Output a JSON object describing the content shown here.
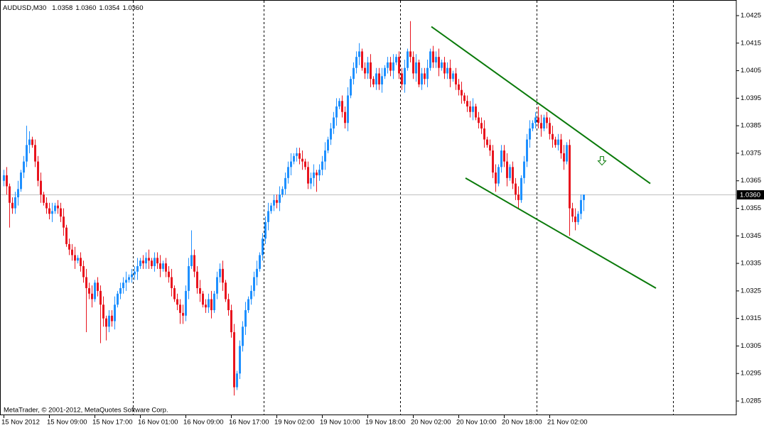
{
  "chart_data": {
    "type": "candlestick",
    "title": "AUDUSD,M30",
    "ohlc_labels": [
      "1.0358",
      "1.0360",
      "1.0354",
      "1.0360"
    ],
    "watermark": "MetaTrader, © 2001-2012, MetaQuotes Software Corp.",
    "up_color": "#1e90ff",
    "down_color": "#e8141e",
    "ylim": [
      1.028,
      1.043
    ],
    "yticks": [
      1.0425,
      1.0415,
      1.0405,
      1.0395,
      1.0385,
      1.0375,
      1.0365,
      1.0355,
      1.0345,
      1.0335,
      1.0325,
      1.0315,
      1.0305,
      1.0295,
      1.0285
    ],
    "current_price": {
      "value": 1.036,
      "label": "1.0360"
    },
    "categories": [
      "15 Nov 2012",
      null,
      null,
      null,
      null,
      null,
      null,
      null,
      null,
      null,
      null,
      null,
      null,
      null,
      null,
      null,
      "15 Nov 09:00",
      null,
      null,
      null,
      null,
      null,
      null,
      null,
      null,
      null,
      null,
      null,
      null,
      null,
      null,
      null,
      "15 Nov 17:00",
      null,
      null,
      null,
      null,
      null,
      null,
      null,
      null,
      null,
      null,
      null,
      null,
      null,
      null,
      null,
      "16 Nov 01:00",
      null,
      null,
      null,
      null,
      null,
      null,
      null,
      null,
      null,
      null,
      null,
      null,
      null,
      null,
      null,
      "16 Nov 09:00",
      null,
      null,
      null,
      null,
      null,
      null,
      null,
      null,
      null,
      null,
      null,
      null,
      null,
      null,
      null,
      "16 Nov 17:00",
      null,
      null,
      null,
      null,
      null,
      null,
      null,
      null,
      null,
      null,
      null,
      null,
      null,
      null,
      null,
      "19 Nov 02:00",
      null,
      null,
      null,
      null,
      null,
      null,
      null,
      null,
      null,
      null,
      null,
      null,
      null,
      null,
      null,
      "19 Nov 10:00",
      null,
      null,
      null,
      null,
      null,
      null,
      null,
      null,
      null,
      null,
      null,
      null,
      null,
      null,
      null,
      "19 Nov 18:00",
      null,
      null,
      null,
      null,
      null,
      null,
      null,
      null,
      null,
      null,
      null,
      null,
      null,
      null,
      null,
      "20 Nov 02:00",
      null,
      null,
      null,
      null,
      null,
      null,
      null,
      null,
      null,
      null,
      null,
      null,
      null,
      null,
      null,
      "20 Nov 10:00",
      null,
      null,
      null,
      null,
      null,
      null,
      null,
      null,
      null,
      null,
      null,
      null,
      null,
      null,
      null,
      "20 Nov 18:00",
      null,
      null,
      null,
      null,
      null,
      null,
      null,
      null,
      null,
      null,
      null,
      null,
      null,
      null,
      null,
      "21 Nov 02:00",
      null,
      null,
      null,
      null,
      null,
      null,
      null,
      null,
      null,
      null,
      null,
      null
    ],
    "open": [
      1.0365,
      1.0367,
      1.0363,
      1.0357,
      1.0355,
      1.0359,
      1.0362,
      1.0368,
      1.0372,
      1.0378,
      1.038,
      1.0378,
      1.0372,
      1.0365,
      1.036,
      1.0357,
      1.0355,
      1.0353,
      1.0354,
      1.0356,
      1.0355,
      1.0352,
      1.0348,
      1.0342,
      1.034,
      1.0338,
      1.0336,
      1.0337,
      1.0334,
      1.033,
      1.0326,
      1.0324,
      1.0322,
      1.0328,
      1.0325,
      1.032,
      1.0315,
      1.0312,
      1.0316,
      1.0314,
      1.032,
      1.0324,
      1.0326,
      1.0328,
      1.0329,
      1.033,
      1.0331,
      1.0332,
      1.0334,
      1.0336,
      1.0335,
      1.0337,
      1.0336,
      1.0334,
      1.0337,
      1.0335,
      1.0333,
      1.0335,
      1.0332,
      1.033,
      1.0326,
      1.0322,
      1.032,
      1.0317,
      1.0316,
      1.0325,
      1.0334,
      1.0338,
      1.0332,
      1.0326,
      1.0324,
      1.032,
      1.0319,
      1.0322,
      1.0318,
      1.0324,
      1.033,
      1.0333,
      1.0328,
      1.0322,
      1.0318,
      1.031,
      1.029,
      1.0295,
      1.0305,
      1.0312,
      1.0318,
      1.0322,
      1.0325,
      1.033,
      1.0333,
      1.0338,
      1.0344,
      1.035,
      1.0354,
      1.0356,
      1.0358,
      1.0357,
      1.036,
      1.0362,
      1.0366,
      1.037,
      1.0372,
      1.0374,
      1.0375,
      1.0373,
      1.0372,
      1.037,
      1.0364,
      1.0366,
      1.0368,
      1.0367,
      1.0369,
      1.0372,
      1.0376,
      1.038,
      1.0384,
      1.0388,
      1.0392,
      1.0394,
      1.039,
      1.0386,
      1.0396,
      1.0402,
      1.0406,
      1.041,
      1.0412,
      1.0406,
      1.0404,
      1.0408,
      1.0402,
      1.04,
      1.0404,
      1.04,
      1.0403,
      1.0406,
      1.0408,
      1.0405,
      1.0408,
      1.041,
      1.0404,
      1.04,
      1.0406,
      1.0412,
      1.041,
      1.0404,
      1.0408,
      1.04,
      1.0404,
      1.0402,
      1.0406,
      1.0412,
      1.0408,
      1.041,
      1.0406,
      1.0408,
      1.0404,
      1.0406,
      1.0402,
      1.0404,
      1.04,
      1.0398,
      1.0396,
      1.0394,
      1.0392,
      1.039,
      1.0392,
      1.0388,
      1.0386,
      1.0384,
      1.038,
      1.0378,
      1.0376,
      1.0368,
      1.0364,
      1.037,
      1.0376,
      1.0372,
      1.0366,
      1.037,
      1.0364,
      1.036,
      1.0358,
      1.0366,
      1.0372,
      1.038,
      1.0384,
      1.0386,
      1.0388,
      1.0386,
      1.0384,
      1.0388,
      1.0386,
      1.0382,
      1.038,
      1.0378,
      1.038,
      1.0375,
      1.0372,
      1.0378,
      1.0355,
      1.0352,
      1.035,
      1.0353,
      1.0358
    ],
    "high": [
      1.0369,
      1.037,
      1.0364,
      1.0359,
      1.0361,
      1.0365,
      1.0369,
      1.0374,
      1.0385,
      1.0383,
      1.0381,
      1.038,
      1.0374,
      1.0368,
      1.0361,
      1.0359,
      1.0357,
      1.0357,
      1.0357,
      1.0358,
      1.0357,
      1.0355,
      1.0349,
      1.0344,
      1.0342,
      1.0341,
      1.0338,
      1.0339,
      1.0336,
      1.0333,
      1.0328,
      1.0327,
      1.0329,
      1.033,
      1.0327,
      1.0323,
      1.0316,
      1.0318,
      1.0318,
      1.0323,
      1.0325,
      1.0328,
      1.033,
      1.0332,
      1.0331,
      1.0333,
      1.0334,
      1.0337,
      1.0337,
      1.0338,
      1.0339,
      1.034,
      1.0337,
      1.0339,
      1.0339,
      1.0338,
      1.0336,
      1.0337,
      1.0334,
      1.0333,
      1.0327,
      1.0324,
      1.0322,
      1.032,
      1.0327,
      1.0337,
      1.0347,
      1.034,
      1.0334,
      1.0329,
      1.0325,
      1.0322,
      1.0324,
      1.0325,
      1.0325,
      1.0332,
      1.0335,
      1.0336,
      1.0329,
      1.0324,
      1.032,
      1.0313,
      1.0296,
      1.0307,
      1.0314,
      1.0321,
      1.0323,
      1.0327,
      1.0332,
      1.0336,
      1.0339,
      1.0346,
      1.0352,
      1.0357,
      1.0357,
      1.036,
      1.036,
      1.0363,
      1.0363,
      1.0368,
      1.0372,
      1.0375,
      1.0375,
      1.0377,
      1.0377,
      1.0376,
      1.0373,
      1.0372,
      1.0368,
      1.0371,
      1.0369,
      1.0371,
      1.0374,
      1.0379,
      1.0381,
      1.0386,
      1.039,
      1.0395,
      1.0395,
      1.0396,
      1.0392,
      1.0399,
      1.0403,
      1.0408,
      1.0412,
      1.0415,
      1.0413,
      1.0408,
      1.041,
      1.0411,
      1.0403,
      1.0406,
      1.0406,
      1.0406,
      1.0407,
      1.041,
      1.041,
      1.0411,
      1.0411,
      1.0412,
      1.0406,
      1.0409,
      1.0413,
      1.0423,
      1.0412,
      1.0411,
      1.0409,
      1.0406,
      1.0406,
      1.0409,
      1.0413,
      1.0414,
      1.0412,
      1.0413,
      1.0409,
      1.041,
      1.0408,
      1.0409,
      1.0405,
      1.0406,
      1.0402,
      1.0401,
      1.0397,
      1.0396,
      1.0394,
      1.0395,
      1.0393,
      1.039,
      1.0388,
      1.0387,
      1.0381,
      1.038,
      1.0378,
      1.0371,
      1.0371,
      1.0378,
      1.0378,
      1.0375,
      1.0371,
      1.0372,
      1.0366,
      1.0363,
      1.0367,
      1.0374,
      1.0382,
      1.0387,
      1.0387,
      1.039,
      1.0392,
      1.0389,
      1.0389,
      1.039,
      1.0388,
      1.0385,
      1.0381,
      1.0382,
      1.0382,
      1.0378,
      1.0379,
      1.038,
      1.0357,
      1.0355,
      1.0354,
      1.036,
      1.036
    ],
    "low": [
      1.0363,
      1.036,
      1.0348,
      1.0353,
      1.0353,
      1.0356,
      1.0361,
      1.0366,
      1.037,
      1.0375,
      1.0377,
      1.037,
      1.0363,
      1.0357,
      1.0356,
      1.0353,
      1.0351,
      1.035,
      1.0353,
      1.0353,
      1.035,
      1.0345,
      1.0341,
      1.0338,
      1.0336,
      1.0333,
      1.0335,
      1.0332,
      1.0328,
      1.031,
      1.0322,
      1.0319,
      1.0321,
      1.0323,
      1.0306,
      1.0312,
      1.0307,
      1.031,
      1.0312,
      1.0311,
      1.0319,
      1.0322,
      1.0324,
      1.0325,
      1.0328,
      1.0328,
      1.0329,
      1.0329,
      1.0333,
      1.0333,
      1.0333,
      1.0333,
      1.0333,
      1.0332,
      1.0333,
      1.033,
      1.0332,
      1.033,
      1.0328,
      1.0323,
      1.0321,
      1.0318,
      1.0313,
      1.0313,
      1.0314,
      1.0322,
      1.0333,
      1.033,
      1.0324,
      1.0321,
      1.0319,
      1.0317,
      1.0317,
      1.0315,
      1.0317,
      1.0322,
      1.0328,
      1.0325,
      1.0321,
      1.0316,
      1.0308,
      1.0287,
      1.0289,
      1.0293,
      1.0303,
      1.0309,
      1.0317,
      1.032,
      1.0323,
      1.0327,
      1.0332,
      1.0336,
      1.0342,
      1.0347,
      1.0353,
      1.0354,
      1.0355,
      1.0354,
      1.0359,
      1.036,
      1.0364,
      1.0367,
      1.0371,
      1.0372,
      1.0371,
      1.0369,
      1.0369,
      1.0362,
      1.0362,
      1.0363,
      1.0361,
      1.0365,
      1.0367,
      1.0369,
      1.0375,
      1.0378,
      1.0382,
      1.0385,
      1.0391,
      1.0388,
      1.0384,
      1.0383,
      1.0395,
      1.04,
      1.0404,
      1.0407,
      1.0405,
      1.0402,
      1.0402,
      1.0399,
      1.0399,
      1.0398,
      1.0398,
      1.0397,
      1.0402,
      1.0404,
      1.0403,
      1.0402,
      1.0407,
      1.0402,
      1.0398,
      1.0397,
      1.0405,
      1.0408,
      1.0402,
      1.0401,
      1.0399,
      1.0398,
      1.04,
      1.0399,
      1.0405,
      1.0406,
      1.0406,
      1.0403,
      1.0405,
      1.0402,
      1.0402,
      1.0399,
      1.0401,
      1.0398,
      1.0396,
      1.0393,
      1.0393,
      1.039,
      1.0388,
      1.0387,
      1.0387,
      1.0384,
      1.0382,
      1.0377,
      1.0377,
      1.0374,
      1.0366,
      1.0361,
      1.0363,
      1.0368,
      1.037,
      1.0363,
      1.0365,
      1.0362,
      1.0358,
      1.0355,
      1.0357,
      1.0364,
      1.037,
      1.0377,
      1.0383,
      1.0384,
      1.0384,
      1.0381,
      1.0383,
      1.0384,
      1.038,
      1.0377,
      1.0377,
      1.0376,
      1.0373,
      1.0369,
      1.0371,
      1.0345,
      1.035,
      1.0347,
      1.0349,
      1.0351,
      1.0354
    ],
    "close": [
      1.0367,
      1.0363,
      1.0357,
      1.0355,
      1.0359,
      1.0362,
      1.0368,
      1.0372,
      1.0378,
      1.038,
      1.0378,
      1.0372,
      1.0365,
      1.036,
      1.0357,
      1.0355,
      1.0353,
      1.0354,
      1.0356,
      1.0355,
      1.0352,
      1.0348,
      1.0342,
      1.034,
      1.0338,
      1.0336,
      1.0337,
      1.0334,
      1.033,
      1.0326,
      1.0324,
      1.0322,
      1.0328,
      1.0325,
      1.032,
      1.0315,
      1.0312,
      1.0316,
      1.0314,
      1.032,
      1.0324,
      1.0326,
      1.0328,
      1.0329,
      1.033,
      1.0331,
      1.0332,
      1.0334,
      1.0336,
      1.0335,
      1.0337,
      1.0336,
      1.0334,
      1.0337,
      1.0335,
      1.0333,
      1.0335,
      1.0332,
      1.033,
      1.0326,
      1.0322,
      1.032,
      1.0317,
      1.0316,
      1.0325,
      1.0334,
      1.0338,
      1.0332,
      1.0326,
      1.0324,
      1.032,
      1.0319,
      1.0322,
      1.0318,
      1.0324,
      1.033,
      1.0333,
      1.0328,
      1.0322,
      1.0318,
      1.031,
      1.029,
      1.0295,
      1.0305,
      1.0312,
      1.0318,
      1.0322,
      1.0325,
      1.033,
      1.0333,
      1.0338,
      1.0344,
      1.035,
      1.0354,
      1.0356,
      1.0358,
      1.0357,
      1.036,
      1.0362,
      1.0366,
      1.037,
      1.0372,
      1.0374,
      1.0375,
      1.0373,
      1.0372,
      1.037,
      1.0364,
      1.0366,
      1.0368,
      1.0367,
      1.0369,
      1.0372,
      1.0376,
      1.038,
      1.0384,
      1.0388,
      1.0392,
      1.0394,
      1.039,
      1.0386,
      1.0396,
      1.0402,
      1.0406,
      1.041,
      1.0412,
      1.0406,
      1.0404,
      1.0408,
      1.0402,
      1.04,
      1.0404,
      1.04,
      1.0403,
      1.0406,
      1.0408,
      1.0405,
      1.0408,
      1.041,
      1.0404,
      1.04,
      1.0406,
      1.0412,
      1.041,
      1.0404,
      1.0408,
      1.04,
      1.0404,
      1.0402,
      1.0406,
      1.0412,
      1.0408,
      1.041,
      1.0406,
      1.0408,
      1.0404,
      1.0406,
      1.0402,
      1.0404,
      1.04,
      1.0398,
      1.0396,
      1.0394,
      1.0392,
      1.039,
      1.0392,
      1.0388,
      1.0386,
      1.0384,
      1.038,
      1.0378,
      1.0376,
      1.0368,
      1.0364,
      1.037,
      1.0376,
      1.0372,
      1.0366,
      1.037,
      1.0364,
      1.036,
      1.0358,
      1.0366,
      1.0372,
      1.038,
      1.0384,
      1.0386,
      1.0388,
      1.0386,
      1.0384,
      1.0388,
      1.0386,
      1.0382,
      1.038,
      1.0378,
      1.038,
      1.0375,
      1.0372,
      1.0378,
      1.0355,
      1.0352,
      1.035,
      1.0353,
      1.0358,
      1.036
    ],
    "trendlines": [
      {
        "x": [
          150.5,
          227.5
        ],
        "y": [
          1.0421,
          1.0364
        ],
        "color": "#0a7a0a"
      },
      {
        "x": [
          162.5,
          229.5
        ],
        "y": [
          1.0366,
          1.0326
        ],
        "color": "#0a7a0a"
      }
    ],
    "arrow": {
      "x": 210.5,
      "y": 1.0372,
      "color": "#0a7a0a"
    }
  }
}
